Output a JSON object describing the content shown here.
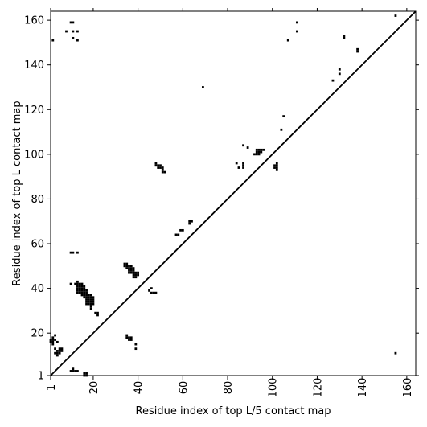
{
  "chart_data": {
    "type": "heatmap",
    "title": "",
    "xlabel": "Residue index of top L/5 contact map",
    "ylabel": "Residue index of top L contact map",
    "xlim": [
      1,
      164
    ],
    "ylim": [
      1,
      164
    ],
    "x_ticks": [
      1,
      20,
      40,
      60,
      80,
      100,
      120,
      140,
      160
    ],
    "y_ticks": [
      1,
      20,
      40,
      60,
      80,
      100,
      120,
      140,
      160
    ],
    "x_tick_rotation": -90,
    "grid": false,
    "diagonal": true,
    "colors": {
      "cell": "#000000",
      "background": "#ffffff",
      "diagonal": "#000000"
    },
    "contacts": [
      [
        2,
        151
      ],
      [
        8,
        155
      ],
      [
        10,
        159
      ],
      [
        11,
        159
      ],
      [
        11,
        155
      ],
      [
        11,
        152
      ],
      [
        13,
        155
      ],
      [
        13,
        151
      ],
      [
        10,
        56
      ],
      [
        11,
        56
      ],
      [
        13,
        56
      ],
      [
        10,
        42
      ],
      [
        12,
        42
      ],
      [
        13,
        43
      ],
      [
        13,
        42
      ],
      [
        13,
        41
      ],
      [
        13,
        40
      ],
      [
        13,
        39
      ],
      [
        13,
        38
      ],
      [
        14,
        42
      ],
      [
        14,
        41
      ],
      [
        14,
        40
      ],
      [
        14,
        39
      ],
      [
        14,
        38
      ],
      [
        15,
        42
      ],
      [
        15,
        41
      ],
      [
        15,
        40
      ],
      [
        15,
        39
      ],
      [
        15,
        38
      ],
      [
        15,
        37
      ],
      [
        16,
        41
      ],
      [
        16,
        40
      ],
      [
        16,
        39
      ],
      [
        16,
        38
      ],
      [
        16,
        37
      ],
      [
        16,
        36
      ],
      [
        17,
        39
      ],
      [
        17,
        38
      ],
      [
        17,
        37
      ],
      [
        17,
        36
      ],
      [
        17,
        35
      ],
      [
        17,
        34
      ],
      [
        17,
        33
      ],
      [
        18,
        37
      ],
      [
        18,
        36
      ],
      [
        18,
        35
      ],
      [
        18,
        34
      ],
      [
        18,
        33
      ],
      [
        19,
        37
      ],
      [
        19,
        36
      ],
      [
        19,
        35
      ],
      [
        19,
        34
      ],
      [
        19,
        33
      ],
      [
        19,
        32
      ],
      [
        19,
        31
      ],
      [
        20,
        36
      ],
      [
        20,
        35
      ],
      [
        20,
        34
      ],
      [
        20,
        33
      ],
      [
        21,
        29
      ],
      [
        22,
        29
      ],
      [
        22,
        28
      ],
      [
        1,
        17
      ],
      [
        1,
        16
      ],
      [
        2,
        18
      ],
      [
        2,
        17
      ],
      [
        2,
        16
      ],
      [
        2,
        15
      ],
      [
        3,
        19
      ],
      [
        3,
        17
      ],
      [
        3,
        13
      ],
      [
        3,
        11
      ],
      [
        4,
        16
      ],
      [
        4,
        12
      ],
      [
        4,
        11
      ],
      [
        4,
        10
      ],
      [
        5,
        13
      ],
      [
        5,
        12
      ],
      [
        5,
        11
      ],
      [
        6,
        13
      ],
      [
        6,
        12
      ],
      [
        10,
        3
      ],
      [
        11,
        4
      ],
      [
        11,
        3
      ],
      [
        12,
        3
      ],
      [
        13,
        3
      ],
      [
        16,
        2
      ],
      [
        16,
        1
      ],
      [
        17,
        2
      ],
      [
        17,
        1
      ],
      [
        34,
        51
      ],
      [
        34,
        50
      ],
      [
        35,
        51
      ],
      [
        35,
        50
      ],
      [
        35,
        49
      ],
      [
        36,
        50
      ],
      [
        36,
        49
      ],
      [
        36,
        48
      ],
      [
        36,
        47
      ],
      [
        37,
        50
      ],
      [
        37,
        49
      ],
      [
        37,
        48
      ],
      [
        37,
        47
      ],
      [
        38,
        49
      ],
      [
        38,
        48
      ],
      [
        38,
        47
      ],
      [
        38,
        46
      ],
      [
        38,
        45
      ],
      [
        39,
        47
      ],
      [
        39,
        46
      ],
      [
        39,
        45
      ],
      [
        40,
        47
      ],
      [
        40,
        46
      ],
      [
        35,
        19
      ],
      [
        35,
        18
      ],
      [
        36,
        18
      ],
      [
        36,
        17
      ],
      [
        37,
        18
      ],
      [
        37,
        17
      ],
      [
        39,
        15
      ],
      [
        39,
        13
      ],
      [
        45,
        39
      ],
      [
        46,
        40
      ],
      [
        46,
        38
      ],
      [
        47,
        38
      ],
      [
        48,
        38
      ],
      [
        48,
        96
      ],
      [
        48,
        95
      ],
      [
        49,
        95
      ],
      [
        49,
        94
      ],
      [
        50,
        95
      ],
      [
        50,
        94
      ],
      [
        51,
        94
      ],
      [
        51,
        93
      ],
      [
        51,
        92
      ],
      [
        52,
        92
      ],
      [
        57,
        64
      ],
      [
        58,
        64
      ],
      [
        59,
        66
      ],
      [
        60,
        66
      ],
      [
        63,
        70
      ],
      [
        63,
        69
      ],
      [
        64,
        70
      ],
      [
        69,
        130
      ],
      [
        84,
        96
      ],
      [
        85,
        94
      ],
      [
        87,
        104
      ],
      [
        87,
        96
      ],
      [
        87,
        95
      ],
      [
        87,
        94
      ],
      [
        89,
        103
      ],
      [
        92,
        100
      ],
      [
        93,
        102
      ],
      [
        93,
        101
      ],
      [
        93,
        100
      ],
      [
        94,
        102
      ],
      [
        94,
        101
      ],
      [
        94,
        100
      ],
      [
        95,
        102
      ],
      [
        95,
        101
      ],
      [
        96,
        102
      ],
      [
        101,
        95
      ],
      [
        101,
        94
      ],
      [
        102,
        96
      ],
      [
        102,
        95
      ],
      [
        102,
        94
      ],
      [
        102,
        93
      ],
      [
        104,
        111
      ],
      [
        105,
        117
      ],
      [
        107,
        151
      ],
      [
        111,
        159
      ],
      [
        111,
        155
      ],
      [
        127,
        133
      ],
      [
        130,
        138
      ],
      [
        130,
        136
      ],
      [
        132,
        153
      ],
      [
        132,
        152
      ],
      [
        138,
        147
      ],
      [
        138,
        146
      ],
      [
        155,
        162
      ],
      [
        155,
        11
      ]
    ]
  }
}
